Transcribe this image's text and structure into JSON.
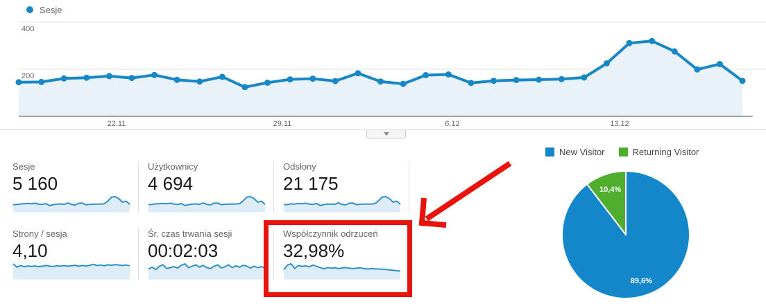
{
  "colors": {
    "line_blue": "#1788c5",
    "area_fill": "#e9f2f8",
    "grid_line": "#e6e6e6",
    "axis_line": "#4a4a4a",
    "tick_gray": "#666666",
    "spark_line": "#3091c4",
    "spark_fill": "#ddecf6",
    "pie_blue": "#1387c9",
    "pie_green": "#4fae2e",
    "annotation_red": "#e8130c"
  },
  "chart_data": [
    {
      "id": "sessions_timeline",
      "type": "line",
      "title": "Sesje",
      "legend_position": "top-left",
      "grid": true,
      "area_fill": true,
      "ylim": [
        0,
        440
      ],
      "y_ticks": [
        {
          "label": "400",
          "value": 400
        },
        {
          "label": "200",
          "value": 200
        }
      ],
      "x_ticks": [
        {
          "label": "22.11",
          "pos": 0.152
        },
        {
          "label": "29.11",
          "pos": 0.369
        },
        {
          "label": "6.12",
          "pos": 0.591
        },
        {
          "label": "13.12",
          "pos": 0.809
        }
      ],
      "series": [
        {
          "name": "Sesje",
          "values": [
            145,
            146,
            161,
            164,
            171,
            163,
            176,
            155,
            148,
            168,
            124,
            143,
            157,
            160,
            150,
            183,
            148,
            138,
            175,
            178,
            142,
            151,
            154,
            156,
            158,
            165,
            225,
            311,
            320,
            276,
            199,
            222,
            151
          ]
        }
      ]
    },
    {
      "id": "visitor_pie",
      "type": "pie",
      "legend_position": "top",
      "slices": [
        {
          "label": "New Visitor",
          "value_pct": 89.6,
          "display": "89,6%",
          "color": "#1387c9"
        },
        {
          "label": "Returning Visitor",
          "value_pct": 10.4,
          "display": "10,4%",
          "color": "#4fae2e"
        }
      ]
    }
  ],
  "metric_cards": {
    "rows": [
      [
        {
          "label": "Sesje",
          "value": "5 160",
          "sparkline": [
            145,
            146,
            161,
            164,
            171,
            163,
            176,
            155,
            148,
            168,
            124,
            143,
            157,
            160,
            150,
            183,
            148,
            138,
            175,
            178,
            142,
            151,
            154,
            156,
            158,
            165,
            225,
            311,
            320,
            276,
            199,
            222,
            151
          ]
        },
        {
          "label": "Użytkownicy",
          "value": "4 694",
          "sparkline": [
            140,
            142,
            156,
            160,
            166,
            158,
            170,
            150,
            144,
            162,
            120,
            139,
            152,
            155,
            146,
            177,
            144,
            134,
            170,
            172,
            138,
            147,
            150,
            152,
            154,
            160,
            218,
            300,
            308,
            266,
            192,
            214,
            146
          ]
        },
        {
          "label": "Odsłony",
          "value": "21 175",
          "sparkline": [
            150,
            148,
            165,
            160,
            175,
            168,
            180,
            158,
            152,
            172,
            128,
            148,
            162,
            158,
            154,
            188,
            152,
            142,
            180,
            182,
            146,
            155,
            158,
            160,
            162,
            170,
            232,
            318,
            326,
            282,
            204,
            226,
            156
          ]
        }
      ],
      [
        {
          "label": "Strony / sesja",
          "value": "4,10",
          "sparkline": [
            62,
            48,
            55,
            50,
            53,
            51,
            53,
            50,
            52,
            55,
            52,
            51,
            54,
            52,
            55,
            52,
            54,
            56,
            52,
            55,
            53,
            56,
            60,
            55,
            57,
            54,
            58,
            56,
            59,
            57,
            55,
            57,
            54
          ]
        },
        {
          "label": "Śr. czas trwania sesji",
          "value": "00:02:03",
          "sparkline": [
            40,
            48,
            38,
            52,
            58,
            42,
            46,
            50,
            44,
            56,
            62,
            46,
            52,
            58,
            48,
            56,
            46,
            42,
            52,
            58,
            44,
            50,
            58,
            46,
            54,
            48,
            56,
            52,
            44,
            52,
            46,
            50,
            44
          ]
        },
        {
          "label": "Współczynnik odrzuceń",
          "value": "32,98%",
          "highlighted": true,
          "sparkline": [
            42,
            64,
            70,
            48,
            62,
            58,
            60,
            56,
            64,
            58,
            52,
            46,
            52,
            49,
            51,
            47,
            50,
            52,
            49,
            47,
            49,
            51,
            47,
            45,
            47,
            46,
            45,
            44,
            43,
            41,
            39,
            37,
            35
          ]
        }
      ]
    ]
  },
  "collapse_button": {
    "icon": "chevron-down"
  }
}
